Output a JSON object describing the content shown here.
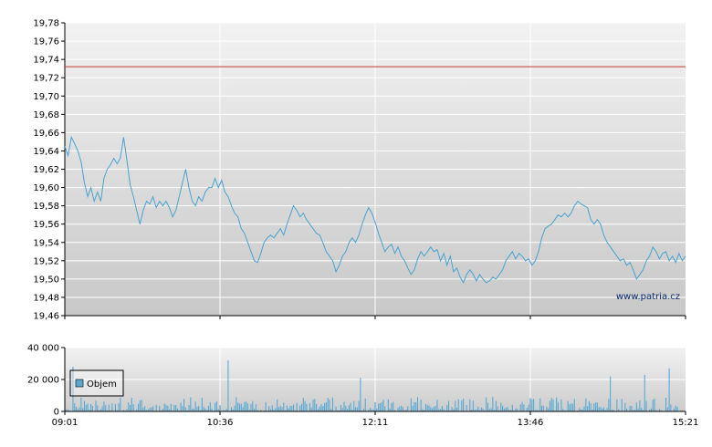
{
  "watermark": "www.patria.cz",
  "legend": {
    "label": "Objem",
    "color": "#5aa9d3"
  },
  "colors": {
    "line": "#4aa3cf",
    "reference": "#c0392b",
    "bar": "#5aa9d3",
    "grid": "#ffffff"
  },
  "chart_data": [
    {
      "type": "line",
      "name": "price",
      "x_ticks": [
        "09:01",
        "10:36",
        "12:11",
        "13:46",
        "15:21"
      ],
      "x_range_minutes": [
        0,
        380
      ],
      "y_ticks": [
        "19,46",
        "19,48",
        "19,50",
        "19,52",
        "19,54",
        "19,56",
        "19,58",
        "19,60",
        "19,62",
        "19,64",
        "19,66",
        "19,68",
        "19,70",
        "19,72",
        "19,74",
        "19,76",
        "19,78"
      ],
      "ylim": [
        19.46,
        19.78
      ],
      "reference_line": 19.732,
      "grid": true,
      "points": [
        [
          0,
          19.645
        ],
        [
          2,
          19.635
        ],
        [
          4,
          19.655
        ],
        [
          6,
          19.648
        ],
        [
          8,
          19.64
        ],
        [
          10,
          19.628
        ],
        [
          12,
          19.605
        ],
        [
          14,
          19.59
        ],
        [
          16,
          19.6
        ],
        [
          18,
          19.585
        ],
        [
          20,
          19.595
        ],
        [
          22,
          19.585
        ],
        [
          24,
          19.61
        ],
        [
          26,
          19.62
        ],
        [
          28,
          19.625
        ],
        [
          30,
          19.632
        ],
        [
          32,
          19.626
        ],
        [
          34,
          19.632
        ],
        [
          36,
          19.655
        ],
        [
          38,
          19.63
        ],
        [
          40,
          19.603
        ],
        [
          42,
          19.59
        ],
        [
          44,
          19.575
        ],
        [
          46,
          19.56
        ],
        [
          48,
          19.575
        ],
        [
          50,
          19.585
        ],
        [
          52,
          19.582
        ],
        [
          54,
          19.59
        ],
        [
          56,
          19.578
        ],
        [
          58,
          19.585
        ],
        [
          60,
          19.58
        ],
        [
          62,
          19.585
        ],
        [
          64,
          19.578
        ],
        [
          66,
          19.568
        ],
        [
          68,
          19.575
        ],
        [
          70,
          19.59
        ],
        [
          72,
          19.605
        ],
        [
          74,
          19.62
        ],
        [
          76,
          19.6
        ],
        [
          78,
          19.585
        ],
        [
          80,
          19.58
        ],
        [
          82,
          19.59
        ],
        [
          84,
          19.585
        ],
        [
          86,
          19.595
        ],
        [
          88,
          19.6
        ],
        [
          90,
          19.6
        ],
        [
          92,
          19.61
        ],
        [
          94,
          19.6
        ],
        [
          96,
          19.608
        ],
        [
          98,
          19.595
        ],
        [
          100,
          19.59
        ],
        [
          102,
          19.58
        ],
        [
          104,
          19.572
        ],
        [
          106,
          19.568
        ],
        [
          108,
          19.555
        ],
        [
          110,
          19.55
        ],
        [
          112,
          19.54
        ],
        [
          114,
          19.53
        ],
        [
          116,
          19.52
        ],
        [
          118,
          19.518
        ],
        [
          120,
          19.528
        ],
        [
          122,
          19.54
        ],
        [
          124,
          19.545
        ],
        [
          126,
          19.548
        ],
        [
          128,
          19.545
        ],
        [
          130,
          19.55
        ],
        [
          132,
          19.555
        ],
        [
          134,
          19.548
        ],
        [
          136,
          19.56
        ],
        [
          138,
          19.57
        ],
        [
          140,
          19.58
        ],
        [
          142,
          19.575
        ],
        [
          144,
          19.568
        ],
        [
          146,
          19.572
        ],
        [
          148,
          19.565
        ],
        [
          150,
          19.56
        ],
        [
          152,
          19.555
        ],
        [
          154,
          19.55
        ],
        [
          156,
          19.548
        ],
        [
          158,
          19.54
        ],
        [
          160,
          19.53
        ],
        [
          162,
          19.525
        ],
        [
          164,
          19.52
        ],
        [
          166,
          19.508
        ],
        [
          168,
          19.515
        ],
        [
          170,
          19.525
        ],
        [
          172,
          19.53
        ],
        [
          174,
          19.54
        ],
        [
          176,
          19.545
        ],
        [
          178,
          19.54
        ],
        [
          180,
          19.548
        ],
        [
          182,
          19.56
        ],
        [
          184,
          19.57
        ],
        [
          186,
          19.578
        ],
        [
          188,
          19.572
        ],
        [
          190,
          19.562
        ],
        [
          192,
          19.55
        ],
        [
          194,
          19.54
        ],
        [
          196,
          19.53
        ],
        [
          198,
          19.535
        ],
        [
          200,
          19.538
        ],
        [
          202,
          19.528
        ],
        [
          204,
          19.535
        ],
        [
          206,
          19.525
        ],
        [
          208,
          19.52
        ],
        [
          210,
          19.512
        ],
        [
          212,
          19.505
        ],
        [
          214,
          19.51
        ],
        [
          216,
          19.522
        ],
        [
          218,
          19.53
        ],
        [
          220,
          19.525
        ],
        [
          222,
          19.53
        ],
        [
          224,
          19.535
        ],
        [
          226,
          19.53
        ],
        [
          228,
          19.532
        ],
        [
          230,
          19.52
        ],
        [
          232,
          19.528
        ],
        [
          234,
          19.515
        ],
        [
          236,
          19.525
        ],
        [
          238,
          19.508
        ],
        [
          240,
          19.512
        ],
        [
          242,
          19.502
        ],
        [
          244,
          19.496
        ],
        [
          246,
          19.505
        ],
        [
          248,
          19.51
        ],
        [
          250,
          19.505
        ],
        [
          252,
          19.498
        ],
        [
          254,
          19.505
        ],
        [
          256,
          19.5
        ],
        [
          258,
          19.496
        ],
        [
          260,
          19.498
        ],
        [
          262,
          19.502
        ],
        [
          264,
          19.5
        ],
        [
          266,
          19.505
        ],
        [
          268,
          19.51
        ],
        [
          270,
          19.52
        ],
        [
          272,
          19.525
        ],
        [
          274,
          19.53
        ],
        [
          276,
          19.522
        ],
        [
          278,
          19.528
        ],
        [
          280,
          19.525
        ],
        [
          282,
          19.52
        ],
        [
          284,
          19.522
        ],
        [
          286,
          19.515
        ],
        [
          288,
          19.52
        ],
        [
          290,
          19.53
        ],
        [
          292,
          19.545
        ],
        [
          294,
          19.555
        ],
        [
          296,
          19.558
        ],
        [
          298,
          19.56
        ],
        [
          300,
          19.565
        ],
        [
          302,
          19.57
        ],
        [
          304,
          19.568
        ],
        [
          306,
          19.572
        ],
        [
          308,
          19.568
        ],
        [
          310,
          19.572
        ],
        [
          312,
          19.58
        ],
        [
          314,
          19.585
        ],
        [
          316,
          19.582
        ],
        [
          318,
          19.58
        ],
        [
          320,
          19.578
        ],
        [
          322,
          19.565
        ],
        [
          324,
          19.56
        ],
        [
          326,
          19.565
        ],
        [
          328,
          19.56
        ],
        [
          330,
          19.548
        ],
        [
          332,
          19.54
        ],
        [
          334,
          19.535
        ],
        [
          336,
          19.53
        ],
        [
          338,
          19.525
        ],
        [
          340,
          19.52
        ],
        [
          342,
          19.522
        ],
        [
          344,
          19.515
        ],
        [
          346,
          19.518
        ],
        [
          348,
          19.51
        ],
        [
          350,
          19.5
        ],
        [
          352,
          19.505
        ],
        [
          354,
          19.51
        ],
        [
          356,
          19.52
        ],
        [
          358,
          19.525
        ],
        [
          360,
          19.535
        ],
        [
          362,
          19.53
        ],
        [
          364,
          19.522
        ],
        [
          366,
          19.528
        ],
        [
          368,
          19.53
        ],
        [
          370,
          19.52
        ],
        [
          372,
          19.525
        ],
        [
          374,
          19.518
        ],
        [
          376,
          19.528
        ],
        [
          378,
          19.52
        ],
        [
          380,
          19.525
        ]
      ]
    },
    {
      "type": "bar",
      "name": "Objem",
      "x_ticks": [
        "09:01",
        "10:36",
        "12:11",
        "13:46",
        "15:21"
      ],
      "y_ticks": [
        "0",
        "20 000",
        "40 000"
      ],
      "ylim": [
        0,
        40000
      ],
      "grid": true,
      "legend_position": "bottom-left",
      "typical_range": [
        500,
        9000
      ],
      "spikes": [
        [
          5,
          28000
        ],
        [
          100,
          32000
        ],
        [
          181,
          21000
        ],
        [
          334,
          22000
        ],
        [
          355,
          23000
        ],
        [
          370,
          27000
        ]
      ]
    }
  ]
}
